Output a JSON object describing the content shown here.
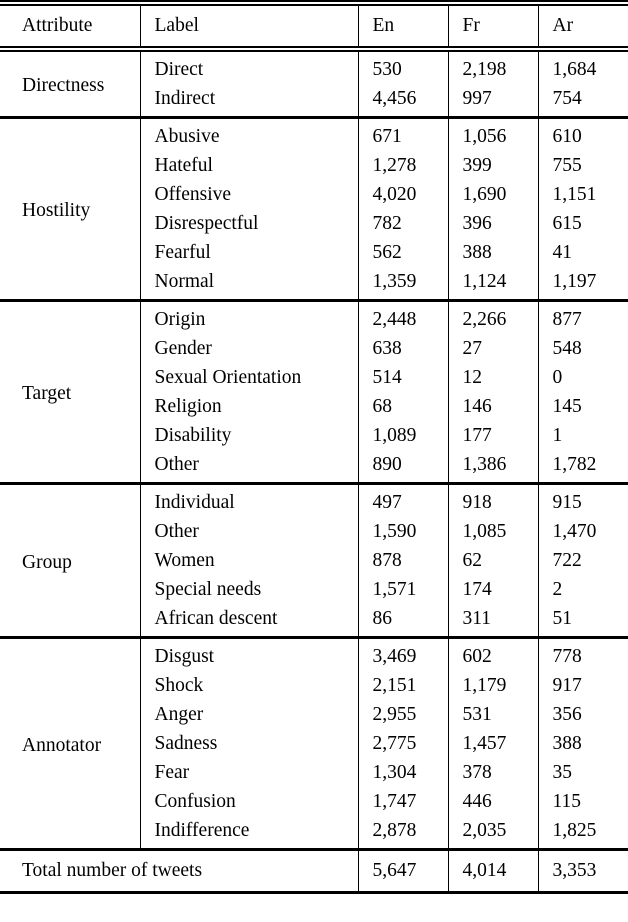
{
  "page": {
    "background": "#ffffff",
    "text_color": "#000000",
    "rule_color": "#000000"
  },
  "table": {
    "columns": [
      "Attribute",
      "Label",
      "En",
      "Fr",
      "Ar"
    ],
    "sections": [
      {
        "attribute": "Directness",
        "rows": [
          {
            "label": "Direct",
            "en": "530",
            "fr": "2,198",
            "ar": "1,684"
          },
          {
            "label": "Indirect",
            "en": "4,456",
            "fr": "997",
            "ar": "754"
          }
        ]
      },
      {
        "attribute": "Hostility",
        "rows": [
          {
            "label": "Abusive",
            "en": "671",
            "fr": "1,056",
            "ar": "610"
          },
          {
            "label": "Hateful",
            "en": "1,278",
            "fr": "399",
            "ar": "755"
          },
          {
            "label": "Offensive",
            "en": "4,020",
            "fr": "1,690",
            "ar": "1,151"
          },
          {
            "label": "Disrespectful",
            "en": "782",
            "fr": "396",
            "ar": "615"
          },
          {
            "label": "Fearful",
            "en": "562",
            "fr": "388",
            "ar": "41"
          },
          {
            "label": "Normal",
            "en": "1,359",
            "fr": "1,124",
            "ar": "1,197"
          }
        ]
      },
      {
        "attribute": "Target",
        "rows": [
          {
            "label": "Origin",
            "en": "2,448",
            "fr": "2,266",
            "ar": "877"
          },
          {
            "label": "Gender",
            "en": "638",
            "fr": "27",
            "ar": "548"
          },
          {
            "label": "Sexual Orientation",
            "en": "514",
            "fr": "12",
            "ar": "0"
          },
          {
            "label": "Religion",
            "en": "68",
            "fr": "146",
            "ar": "145"
          },
          {
            "label": "Disability",
            "en": "1,089",
            "fr": "177",
            "ar": "1"
          },
          {
            "label": "Other",
            "en": "890",
            "fr": "1,386",
            "ar": "1,782"
          }
        ]
      },
      {
        "attribute": "Group",
        "rows": [
          {
            "label": "Individual",
            "en": "497",
            "fr": "918",
            "ar": "915"
          },
          {
            "label": "Other",
            "en": "1,590",
            "fr": "1,085",
            "ar": "1,470"
          },
          {
            "label": "Women",
            "en": "878",
            "fr": "62",
            "ar": "722"
          },
          {
            "label": "Special needs",
            "en": "1,571",
            "fr": "174",
            "ar": "2"
          },
          {
            "label": "African descent",
            "en": "86",
            "fr": "311",
            "ar": "51"
          }
        ]
      },
      {
        "attribute": "Annotator",
        "rows": [
          {
            "label": "Disgust",
            "en": "3,469",
            "fr": "602",
            "ar": "778"
          },
          {
            "label": "Shock",
            "en": "2,151",
            "fr": "1,179",
            "ar": "917"
          },
          {
            "label": "Anger",
            "en": "2,955",
            "fr": "531",
            "ar": "356"
          },
          {
            "label": "Sadness",
            "en": "2,775",
            "fr": "1,457",
            "ar": "388"
          },
          {
            "label": "Fear",
            "en": "1,304",
            "fr": "378",
            "ar": "35"
          },
          {
            "label": "Confusion",
            "en": "1,747",
            "fr": "446",
            "ar": "115"
          },
          {
            "label": "Indifference",
            "en": "2,878",
            "fr": "2,035",
            "ar": "1,825"
          }
        ]
      }
    ],
    "total": {
      "label": "Total number of tweets",
      "values": [
        "5,647",
        "4,014",
        "3,353"
      ]
    }
  }
}
